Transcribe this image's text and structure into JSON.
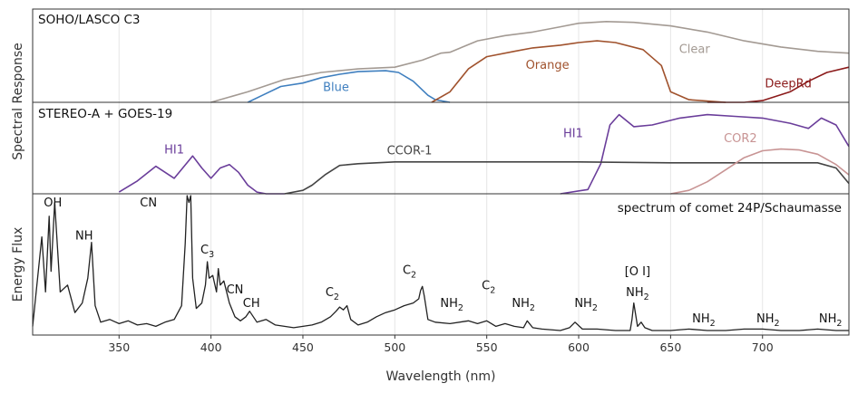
{
  "chart_data": {
    "type": "line",
    "xlabel": "Wavelength (nm)",
    "xlim": [
      303,
      747
    ],
    "xticks": [
      350,
      400,
      450,
      500,
      550,
      600,
      650,
      700
    ],
    "grid": true,
    "panels": [
      {
        "title": "SOHO/LASCO C3",
        "ylabel": "Spectral Response",
        "ylabel_group": "Spectral Response",
        "ylim": [
          0,
          1
        ],
        "series": [
          {
            "name": "Clear",
            "color": "#a39a93",
            "x": [
              400,
              420,
              440,
              460,
              480,
              500,
              515,
              525,
              530,
              545,
              560,
              575,
              590,
              600,
              615,
              630,
              650,
              670,
              690,
              710,
              730,
              747
            ],
            "y": [
              0.0,
              0.12,
              0.26,
              0.34,
              0.38,
              0.4,
              0.48,
              0.56,
              0.57,
              0.7,
              0.76,
              0.8,
              0.86,
              0.9,
              0.92,
              0.91,
              0.87,
              0.8,
              0.7,
              0.63,
              0.58,
              0.56
            ]
          },
          {
            "name": "Blue",
            "color": "#3f7fbf",
            "x": [
              420,
              428,
              438,
              450,
              460,
              470,
              480,
              495,
              502,
              510,
              518,
              522,
              530
            ],
            "y": [
              0.0,
              0.08,
              0.18,
              0.22,
              0.28,
              0.32,
              0.35,
              0.36,
              0.34,
              0.24,
              0.08,
              0.03,
              0.0
            ]
          },
          {
            "name": "Orange",
            "color": "#a0522d",
            "x": [
              520,
              530,
              540,
              550,
              565,
              575,
              590,
              600,
              610,
              620,
              635,
              645,
              650,
              660,
              680
            ],
            "y": [
              0.0,
              0.12,
              0.38,
              0.52,
              0.58,
              0.62,
              0.65,
              0.68,
              0.7,
              0.68,
              0.6,
              0.42,
              0.12,
              0.03,
              0.0
            ]
          },
          {
            "name": "DeepRd",
            "color": "#8b1a1a",
            "x": [
              670,
              690,
              700,
              715,
              725,
              735,
              747
            ],
            "y": [
              0.0,
              0.0,
              0.02,
              0.12,
              0.24,
              0.34,
              0.4
            ]
          }
        ],
        "labels": [
          {
            "text": "Blue",
            "x": 468,
            "y": 0.13,
            "color": "#3f7fbf"
          },
          {
            "text": "Orange",
            "x": 583,
            "y": 0.38,
            "color": "#a0522d"
          },
          {
            "text": "Clear",
            "x": 663,
            "y": 0.56,
            "color": "#a39a93"
          },
          {
            "text": "DeepRd",
            "x": 714,
            "y": 0.17,
            "color": "#8b1a1a"
          }
        ]
      },
      {
        "title": "STEREO-A + GOES-19",
        "ylabel": "",
        "ylim": [
          0,
          1
        ],
        "series": [
          {
            "name": "HI1",
            "color": "#6a3d9a",
            "x": [
              350,
              360,
              370,
              380,
              390,
              395,
              400,
              405,
              410,
              415,
              420,
              425,
              430,
              435,
              440
            ],
            "y": [
              0.02,
              0.15,
              0.32,
              0.18,
              0.44,
              0.3,
              0.18,
              0.3,
              0.34,
              0.25,
              0.1,
              0.02,
              0.0,
              0.0,
              0.0
            ]
          },
          {
            "name": "HI1",
            "color": "#6a3d9a",
            "x": [
              590,
              605,
              612,
              617,
              622,
              630,
              640,
              655,
              670,
              685,
              700,
              715,
              725,
              732,
              740,
              747
            ],
            "y": [
              0.0,
              0.05,
              0.35,
              0.8,
              0.92,
              0.78,
              0.8,
              0.88,
              0.92,
              0.9,
              0.88,
              0.82,
              0.76,
              0.88,
              0.8,
              0.55
            ]
          },
          {
            "name": "CCOR-1",
            "color": "#444444",
            "x": [
              440,
              450,
              455,
              462,
              470,
              480,
              500,
              540,
              600,
              650,
              700,
              730,
              740,
              747
            ],
            "y": [
              0.0,
              0.04,
              0.1,
              0.22,
              0.33,
              0.35,
              0.37,
              0.37,
              0.37,
              0.36,
              0.36,
              0.36,
              0.3,
              0.12
            ]
          },
          {
            "name": "COR2",
            "color": "#c89494",
            "x": [
              650,
              660,
              670,
              680,
              690,
              700,
              710,
              720,
              730,
              740,
              747
            ],
            "y": [
              0.0,
              0.04,
              0.14,
              0.28,
              0.42,
              0.5,
              0.52,
              0.51,
              0.46,
              0.34,
              0.22
            ]
          }
        ],
        "labels": [
          {
            "text": "HI1",
            "x": 380,
            "y": 0.47,
            "color": "#6a3d9a"
          },
          {
            "text": "CCOR-1",
            "x": 508,
            "y": 0.46,
            "color": "#444444"
          },
          {
            "text": "HI1",
            "x": 597,
            "y": 0.66,
            "color": "#6a3d9a"
          },
          {
            "text": "COR2",
            "x": 688,
            "y": 0.6,
            "color": "#c89494"
          }
        ]
      },
      {
        "title": "spectrum of comet 24P/Schaumasse",
        "title_align": "right",
        "ylabel": "Energy Flux",
        "ylim": [
          0,
          1
        ],
        "series": [
          {
            "name": "comet spectrum",
            "color": "#222222",
            "x": [
              303,
              308,
              310,
              312,
              313,
              315,
              318,
              322,
              326,
              330,
              333,
              335,
              337,
              340,
              345,
              350,
              355,
              360,
              365,
              370,
              375,
              380,
              384,
              386,
              387,
              388,
              389,
              390,
              392,
              395,
              397,
              398,
              399,
              401,
              403,
              404,
              405,
              407,
              410,
              413,
              416,
              419,
              421,
              425,
              430,
              435,
              440,
              445,
              450,
              455,
              460,
              465,
              468,
              470,
              472,
              474,
              476,
              480,
              485,
              490,
              495,
              500,
              505,
              510,
              513,
              514,
              515,
              516,
              518,
              522,
              530,
              540,
              545,
              550,
              555,
              560,
              565,
              570,
              572,
              575,
              580,
              590,
              595,
              598,
              602,
              610,
              620,
              628,
              629,
              630,
              632,
              634,
              636,
              640,
              650,
              660,
              670,
              680,
              690,
              700,
              710,
              720,
              730,
              740,
              747
            ],
            "y": [
              0.05,
              0.7,
              0.3,
              0.85,
              0.45,
              0.95,
              0.3,
              0.35,
              0.15,
              0.22,
              0.4,
              0.66,
              0.2,
              0.08,
              0.1,
              0.07,
              0.09,
              0.06,
              0.07,
              0.05,
              0.08,
              0.1,
              0.2,
              0.65,
              1.0,
              0.95,
              1.0,
              0.4,
              0.18,
              0.22,
              0.35,
              0.52,
              0.4,
              0.42,
              0.3,
              0.47,
              0.35,
              0.38,
              0.22,
              0.12,
              0.09,
              0.12,
              0.16,
              0.08,
              0.1,
              0.06,
              0.05,
              0.04,
              0.05,
              0.06,
              0.08,
              0.12,
              0.16,
              0.19,
              0.17,
              0.2,
              0.1,
              0.06,
              0.08,
              0.12,
              0.15,
              0.17,
              0.2,
              0.22,
              0.25,
              0.31,
              0.34,
              0.27,
              0.1,
              0.08,
              0.07,
              0.09,
              0.07,
              0.09,
              0.05,
              0.07,
              0.05,
              0.04,
              0.09,
              0.04,
              0.03,
              0.02,
              0.04,
              0.08,
              0.03,
              0.03,
              0.02,
              0.02,
              0.1,
              0.22,
              0.05,
              0.08,
              0.04,
              0.02,
              0.02,
              0.03,
              0.02,
              0.02,
              0.03,
              0.03,
              0.02,
              0.02,
              0.03,
              0.02,
              0.02
            ]
          }
        ],
        "labels": [
          {
            "text": "OH",
            "x": 314,
            "y": 0.92,
            "color": "#111111"
          },
          {
            "text": "NH",
            "x": 331,
            "y": 0.68,
            "color": "#111111"
          },
          {
            "text": "CN",
            "x": 366,
            "y": 0.92,
            "color": "#111111"
          },
          {
            "text": "C",
            "sub": "3",
            "x": 398,
            "y": 0.58,
            "color": "#111111"
          },
          {
            "text": "CN",
            "x": 413,
            "y": 0.29,
            "color": "#111111"
          },
          {
            "text": "CH",
            "x": 422,
            "y": 0.19,
            "color": "#111111"
          },
          {
            "text": "C",
            "sub": "2",
            "x": 466,
            "y": 0.27,
            "color": "#111111"
          },
          {
            "text": "C",
            "sub": "2",
            "x": 508,
            "y": 0.43,
            "color": "#111111"
          },
          {
            "text": "NH",
            "sub": "2",
            "x": 531,
            "y": 0.19,
            "color": "#111111"
          },
          {
            "text": "C",
            "sub": "2",
            "x": 551,
            "y": 0.32,
            "color": "#111111"
          },
          {
            "text": "NH",
            "sub": "2",
            "x": 570,
            "y": 0.19,
            "color": "#111111"
          },
          {
            "text": "NH",
            "sub": "2",
            "x": 604,
            "y": 0.19,
            "color": "#111111"
          },
          {
            "text": "[O I]",
            "x": 632,
            "y": 0.42,
            "color": "#111111"
          },
          {
            "text": "NH",
            "sub": "2",
            "x": 632,
            "y": 0.27,
            "color": "#111111"
          },
          {
            "text": "NH",
            "sub": "2",
            "x": 668,
            "y": 0.08,
            "color": "#111111"
          },
          {
            "text": "NH",
            "sub": "2",
            "x": 703,
            "y": 0.08,
            "color": "#111111"
          },
          {
            "text": "NH",
            "sub": "2",
            "x": 737,
            "y": 0.08,
            "color": "#111111"
          }
        ]
      }
    ]
  }
}
